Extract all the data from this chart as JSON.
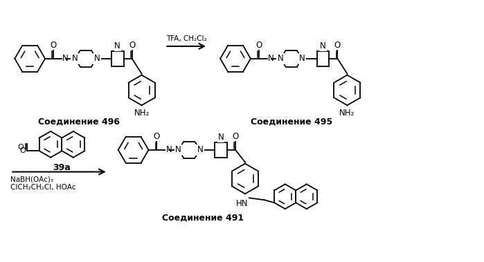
{
  "background_color": "#ffffff",
  "reaction1_reagent": "TFA, CH₂Cl₂",
  "compound496_label": "Соединение 496",
  "compound495_label": "Соединение 495",
  "compound491_label": "Соединение 491",
  "reagent39a_label": "39a",
  "reagent2_line1": "NaBH(OAc)₃",
  "reagent2_line2": "ClCH₂CH₂Cl, HOAc"
}
